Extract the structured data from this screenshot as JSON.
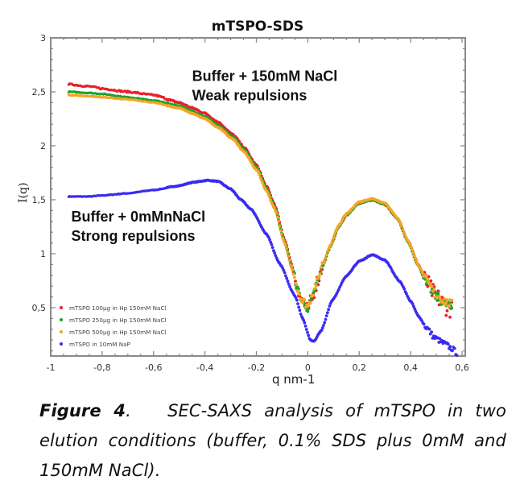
{
  "chart_data": {
    "type": "scatter",
    "title": "mTSPO-SDS",
    "xlabel": "q nm-1",
    "ylabel": "I(q)",
    "xlim": [
      -1,
      0.6
    ],
    "ylim": [
      0.05,
      3
    ],
    "grid": false,
    "x_ticks": [
      -1,
      -0.8,
      -0.6,
      -0.4,
      -0.2,
      0,
      0.2,
      0.4,
      0.6
    ],
    "x_tick_labels": [
      "-1",
      "-0,8",
      "-0,6",
      "-0,4",
      "-0,2",
      "0",
      "0,2",
      "0,4",
      "0,6"
    ],
    "y_ticks": [
      0.5,
      1,
      1.5,
      2,
      2.5,
      3
    ],
    "y_tick_labels": [
      "0,5",
      "1",
      "1,5",
      "2",
      "2,5",
      "3"
    ],
    "legend_position": "bottom-left",
    "annotations": [
      {
        "text": "Buffer + 150mM NaCl",
        "x": -0.45,
        "y": 2.6
      },
      {
        "text": "Weak repulsions",
        "x": -0.45,
        "y": 2.42
      },
      {
        "text": "Buffer + 0mMnNaCl",
        "x": -0.92,
        "y": 1.3
      },
      {
        "text": "Strong repulsions",
        "x": -0.92,
        "y": 1.12
      }
    ],
    "series": [
      {
        "name": "mTSPO 100µg in Hp 150mM NaCl",
        "color": "#e8202a",
        "x": [
          -0.93,
          -0.85,
          -0.8,
          -0.7,
          -0.6,
          -0.5,
          -0.45,
          -0.4,
          -0.35,
          -0.29,
          -0.25,
          -0.2,
          -0.16,
          -0.13,
          -0.09,
          -0.06,
          -0.04,
          -0.02,
          0.0,
          0.014,
          0.04,
          0.06,
          0.086,
          0.12,
          0.15,
          0.2,
          0.25,
          0.3,
          0.35,
          0.39,
          0.43,
          0.462,
          0.5,
          0.546,
          0.56
        ],
        "y": [
          2.57,
          2.55,
          2.53,
          2.5,
          2.47,
          2.4,
          2.35,
          2.3,
          2.22,
          2.1,
          1.99,
          1.82,
          1.62,
          1.46,
          1.13,
          0.88,
          0.68,
          0.55,
          0.48,
          0.57,
          0.76,
          0.9,
          1.06,
          1.25,
          1.36,
          1.47,
          1.5,
          1.46,
          1.32,
          1.12,
          0.9,
          0.73,
          0.6,
          0.5,
          0.48
        ]
      },
      {
        "name": "mTSPO 250µg in Hp 150mM NaCl",
        "color": "#1ea32e",
        "x": [
          -0.93,
          -0.85,
          -0.8,
          -0.7,
          -0.6,
          -0.5,
          -0.45,
          -0.4,
          -0.35,
          -0.29,
          -0.25,
          -0.2,
          -0.16,
          -0.13,
          -0.09,
          -0.06,
          -0.04,
          -0.02,
          0.0,
          0.014,
          0.04,
          0.06,
          0.086,
          0.12,
          0.15,
          0.2,
          0.25,
          0.3,
          0.35,
          0.39,
          0.43,
          0.462,
          0.5,
          0.546,
          0.56
        ],
        "y": [
          2.5,
          2.49,
          2.48,
          2.45,
          2.42,
          2.37,
          2.32,
          2.27,
          2.19,
          2.08,
          1.97,
          1.8,
          1.6,
          1.44,
          1.11,
          0.86,
          0.67,
          0.55,
          0.49,
          0.57,
          0.76,
          0.9,
          1.06,
          1.25,
          1.36,
          1.47,
          1.5,
          1.46,
          1.32,
          1.11,
          0.89,
          0.72,
          0.6,
          0.52,
          0.5
        ]
      },
      {
        "name": "mTSPO 500µg in Hp 150mM NaCl",
        "color": "#f5a623",
        "x": [
          -0.93,
          -0.85,
          -0.8,
          -0.7,
          -0.6,
          -0.5,
          -0.45,
          -0.4,
          -0.35,
          -0.29,
          -0.25,
          -0.2,
          -0.16,
          -0.13,
          -0.09,
          -0.06,
          -0.04,
          -0.02,
          0.0,
          0.014,
          0.04,
          0.06,
          0.086,
          0.12,
          0.15,
          0.2,
          0.25,
          0.3,
          0.35,
          0.39,
          0.43,
          0.462,
          0.5,
          0.546,
          0.56
        ],
        "y": [
          2.47,
          2.46,
          2.45,
          2.43,
          2.4,
          2.35,
          2.3,
          2.25,
          2.17,
          2.06,
          1.95,
          1.78,
          1.58,
          1.42,
          1.1,
          0.85,
          0.67,
          0.56,
          0.51,
          0.58,
          0.77,
          0.91,
          1.07,
          1.26,
          1.37,
          1.48,
          1.51,
          1.47,
          1.33,
          1.12,
          0.9,
          0.74,
          0.62,
          0.54,
          0.53
        ]
      },
      {
        "name": "mTSPO in 10mM NaP",
        "color": "#3a2bf0",
        "x": [
          -0.93,
          -0.85,
          -0.8,
          -0.7,
          -0.6,
          -0.5,
          -0.45,
          -0.39,
          -0.35,
          -0.3,
          -0.26,
          -0.22,
          -0.16,
          -0.11,
          -0.05,
          -0.02,
          0.01,
          0.024,
          0.05,
          0.096,
          0.149,
          0.2,
          0.252,
          0.3,
          0.359,
          0.4,
          0.431,
          0.46,
          0.494,
          0.53,
          0.562,
          0.58
        ],
        "y": [
          1.53,
          1.53,
          1.54,
          1.56,
          1.59,
          1.63,
          1.66,
          1.68,
          1.67,
          1.6,
          1.5,
          1.41,
          1.18,
          0.91,
          0.61,
          0.4,
          0.2,
          0.19,
          0.28,
          0.57,
          0.79,
          0.93,
          0.99,
          0.94,
          0.74,
          0.56,
          0.42,
          0.32,
          0.22,
          0.17,
          0.12,
          0.08
        ]
      }
    ]
  },
  "caption": {
    "label": "Figure 4",
    "punct": ".",
    "text": "SEC-SAXS analysis of mTSPO in two elution conditions (buffer, 0.1% SDS plus 0mM and 150mM NaCl)."
  }
}
